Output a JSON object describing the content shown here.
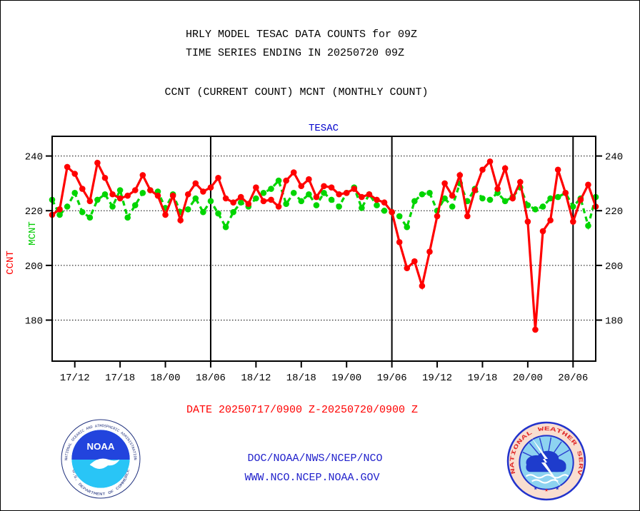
{
  "page": {
    "title_line1": "HRLY MODEL TESAC DATA COUNTS for 09Z",
    "title_line2": "TIME SERIES ENDING IN 20250720 09Z",
    "subtitle": "CCNT (CURRENT COUNT) MCNT (MONTHLY COUNT)",
    "date_range": "DATE 20250717/0900 Z-20250720/0900 Z",
    "footer_org": "DOC/NOAA/NWS/NCEP/NCO",
    "footer_url": "WWW.NCO.NCEP.NOAA.GOV"
  },
  "logos": {
    "noaa": {
      "ring_top": "NATIONAL OCEANIC AND ATMOSPHERIC ADMINISTRATION",
      "ring_bottom": "U.S. DEPARTMENT OF COMMERCE",
      "center_text": "NOAA"
    },
    "nws": {
      "ring_text": "NATIONAL WEATHER SERVICE"
    }
  },
  "colors": {
    "ccnt_red": "#ff0000",
    "mcnt_green": "#00d500",
    "footer_blue": "#2222cc",
    "plot_title_blue": "#0000cc",
    "axis_black": "#000000"
  },
  "chart_data": {
    "type": "line",
    "title": "TESAC",
    "xlabel": "",
    "ylabel_left_series": [
      "CCNT",
      "MCNT"
    ],
    "x_start": "20250717/0900 Z",
    "x_end": "20250720/0900 Z",
    "hours_span": 72,
    "ylim": [
      165,
      247.2
    ],
    "y_ticks": [
      180,
      200,
      220,
      240
    ],
    "grid": "dotted-horizontal",
    "x_tick_hours": [
      3,
      9,
      15,
      21,
      27,
      33,
      39,
      45,
      51,
      57,
      63,
      69
    ],
    "x_tick_labels": [
      "17/12",
      "17/18",
      "18/00",
      "18/06",
      "18/12",
      "18/18",
      "19/00",
      "19/06",
      "19/12",
      "19/18",
      "20/00",
      "20/06"
    ],
    "day_boundary_hours": [
      21,
      45,
      69
    ],
    "series": [
      {
        "name": "CCNT",
        "long_name": "CURRENT COUNT",
        "color": "#ff0000",
        "line_style": "solid",
        "marker": "dot",
        "values": [
          218.5,
          220.5,
          236,
          233.5,
          228,
          223.5,
          237.5,
          232,
          226,
          224.5,
          225.5,
          227.5,
          233,
          227.5,
          225.5,
          218.5,
          225.5,
          216.5,
          226,
          230,
          227,
          228.5,
          232,
          224.5,
          223,
          225,
          222.5,
          228.5,
          223.5,
          224,
          221.5,
          231,
          234,
          229,
          231.5,
          225,
          229,
          228.5,
          226,
          226.5,
          228,
          225,
          226,
          224,
          223,
          219.5,
          208.5,
          199,
          201.5,
          192.5,
          205,
          218,
          230,
          225.5,
          233,
          218,
          227.5,
          235,
          238,
          228,
          235.5,
          224.5,
          230.5,
          216,
          176.5,
          212.5,
          216.5,
          235,
          226.5,
          216,
          224,
          229.5,
          221.5
        ]
      },
      {
        "name": "MCNT",
        "long_name": "MONTHLY COUNT",
        "color": "#00d500",
        "line_style": "dashed",
        "marker": "dot",
        "values": [
          224,
          218.5,
          221.5,
          226.5,
          219.5,
          217.5,
          224,
          226,
          221.5,
          227.5,
          217.5,
          222,
          226.5,
          227.5,
          227,
          221,
          226,
          219.5,
          220.5,
          224.5,
          219.5,
          223.5,
          219,
          214,
          219.5,
          223,
          221.5,
          224.5,
          226.5,
          228,
          231,
          222.5,
          226.5,
          223.5,
          226,
          222,
          226.5,
          224,
          221.5,
          226.5,
          228.5,
          221,
          226,
          222,
          220,
          219.5,
          218,
          214,
          223.5,
          226,
          226.5,
          220,
          224.5,
          221.5,
          230,
          223.5,
          228,
          224.5,
          224,
          226.5,
          223.5,
          225,
          228.5,
          222,
          220.5,
          221.5,
          224.5,
          225,
          226.5,
          221.5,
          224.5,
          214.5,
          225
        ]
      }
    ]
  }
}
